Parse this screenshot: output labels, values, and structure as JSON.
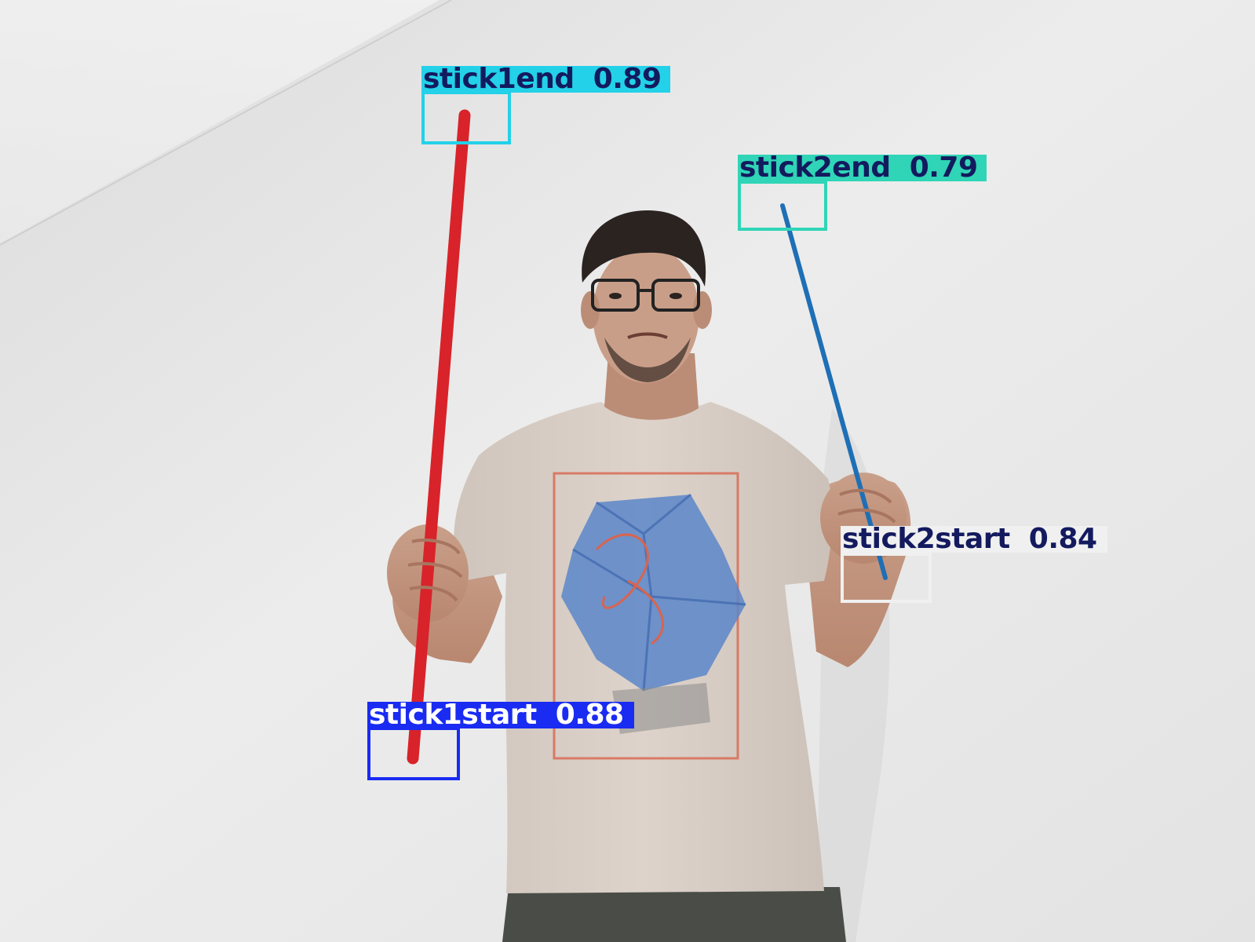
{
  "image": {
    "subject": "person-holding-two-sticks",
    "colors": {
      "wall": "#e8e8e8",
      "shirt": "#d8cec6",
      "red_stick": "#d8232a",
      "blue_stick": "#1e6fb5",
      "print_blue": "#5b86c9",
      "print_red": "#d9644e",
      "trousers": "#4a4d47",
      "hair": "#2a2320",
      "skin": "#c59880"
    }
  },
  "detections": [
    {
      "label": "stick1end",
      "confidence": "0.89",
      "text": "stick1end  0.89",
      "color": "#23d1e8",
      "text_color": "#131a5e"
    },
    {
      "label": "stick2end",
      "confidence": "0.79",
      "text": "stick2end  0.79",
      "color": "#2fd5b6",
      "text_color": "#131a5e"
    },
    {
      "label": "stick2start",
      "confidence": "0.84",
      "text": "stick2start  0.84",
      "color": "#f0f0f0",
      "text_color": "#131a5e"
    },
    {
      "label": "stick1start",
      "confidence": "0.88",
      "text": "stick1start  0.88",
      "color": "#1a2bf2",
      "text_color": "#ffffff"
    }
  ]
}
